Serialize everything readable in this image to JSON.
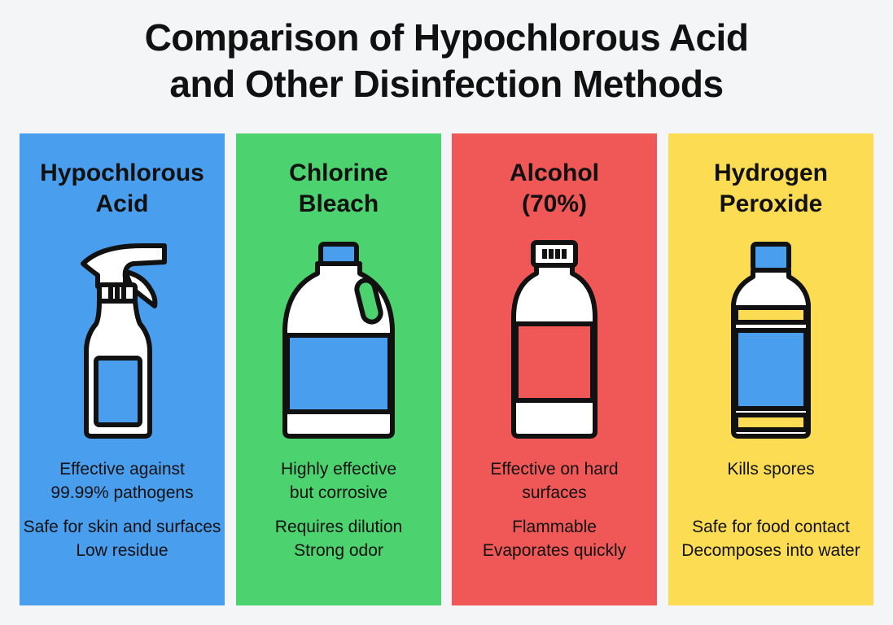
{
  "title": {
    "line1": "Comparison of Hypochlorous Acid",
    "line2": "and Other Disinfection Methods"
  },
  "colors": {
    "background": "#f4f5f7",
    "blue": "#4a9eee",
    "green": "#4cd26e",
    "red": "#f05858",
    "yellow": "#fbdc52"
  },
  "cards": [
    {
      "title_line1": "Hypochlorous",
      "title_line2": "Acid",
      "icon": "spray-bottle-icon",
      "color": "#4a9eee",
      "facts": [
        "Effective against",
        "99.99% pathogens",
        "Safe for skin and surfaces",
        "Low residue"
      ]
    },
    {
      "title_line1": "Chlorine",
      "title_line2": "Bleach",
      "icon": "jug-bottle-icon",
      "color": "#4cd26e",
      "facts": [
        "Highly effective",
        "but corrosive",
        "Requires dilution",
        "Strong odor"
      ]
    },
    {
      "title_line1": "Alcohol",
      "title_line2": "(70%)",
      "icon": "alcohol-bottle-icon",
      "color": "#f05858",
      "facts": [
        "Effective on hard",
        "surfaces",
        "Flammable",
        "Evaporates quickly"
      ]
    },
    {
      "title_line1": "Hydrogen",
      "title_line2": "Peroxide",
      "icon": "peroxide-bottle-icon",
      "color": "#fbdc52",
      "facts": [
        "Kills spores",
        "Safe for food contact",
        "Decomposes into water"
      ]
    }
  ]
}
